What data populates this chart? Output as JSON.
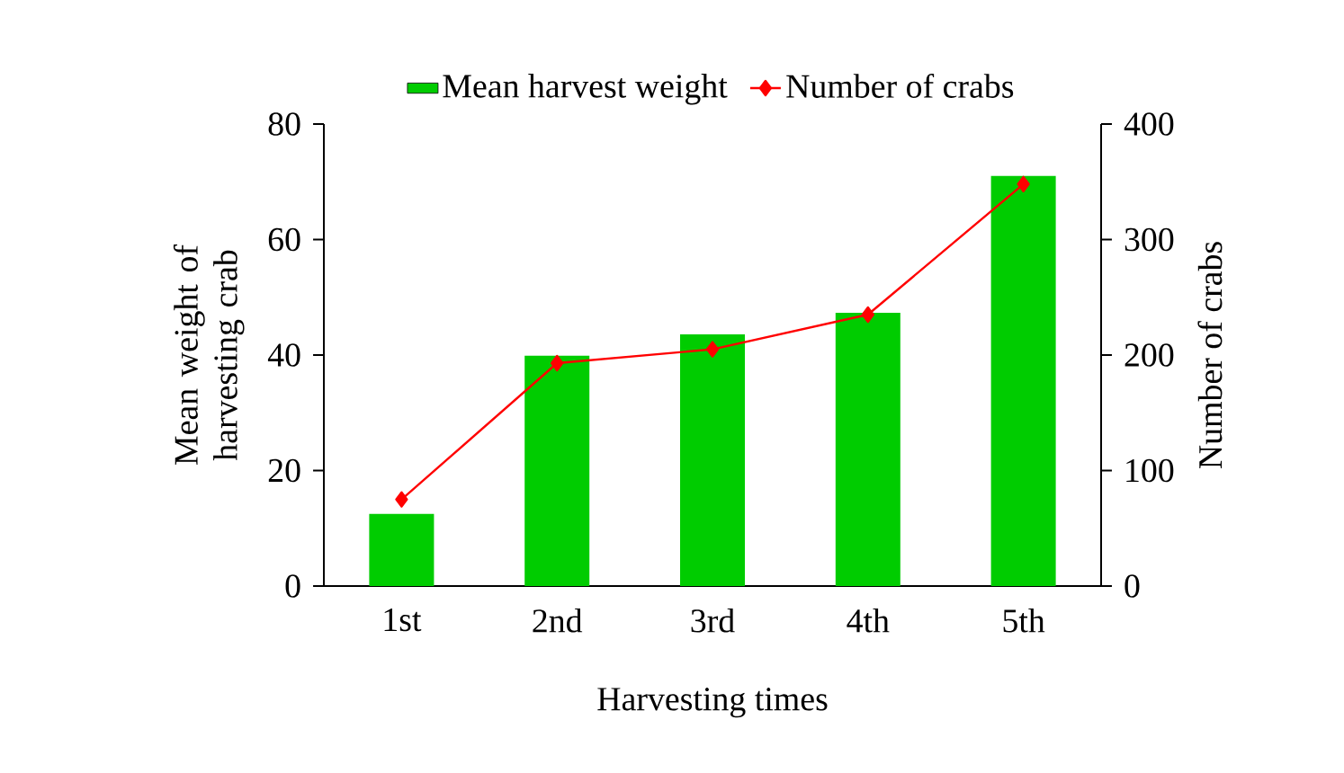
{
  "chart_data": {
    "type": "bar",
    "xlabel": "Harvesting times",
    "ylabel": "Mean weight of harvesting crab",
    "y2label": "Number of crabs",
    "categories": [
      "1st",
      "2nd",
      "3rd",
      "4th",
      "5th"
    ],
    "series": [
      {
        "name": "Mean harvest weight",
        "color": "#00cc00",
        "values": [
          12.5,
          39.9,
          43.6,
          47.3,
          71
        ]
      },
      {
        "name": "Number of crabs",
        "type": "line",
        "axis": "y2",
        "color": "#ff0000",
        "marker": "diamond",
        "values": [
          75,
          193,
          205,
          235,
          348
        ]
      }
    ],
    "ylim": [
      0,
      80
    ],
    "yticks": [
      0,
      20,
      40,
      60,
      80
    ],
    "y2lim": [
      0,
      400
    ],
    "y2ticks": [
      0,
      100,
      200,
      300,
      400
    ],
    "legend": "top",
    "grid": false
  }
}
